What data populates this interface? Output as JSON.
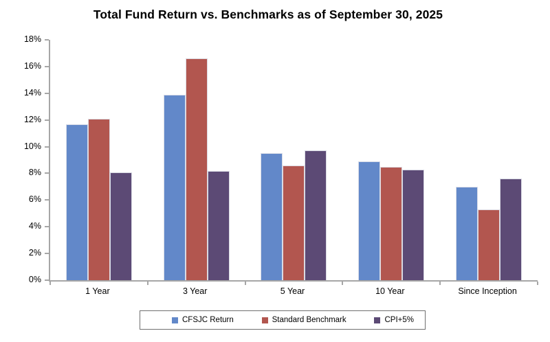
{
  "chart_data": {
    "type": "bar",
    "title": "Total Fund Return vs. Benchmarks as of September 30, 2025",
    "categories": [
      "1 Year",
      "3 Year",
      "5 Year",
      "10 Year",
      "Since Inception"
    ],
    "series": [
      {
        "name": "CFSJC Return",
        "color": "#6288C9",
        "values": [
          11.7,
          13.9,
          9.5,
          8.9,
          7.0
        ]
      },
      {
        "name": "Standard Benchmark",
        "color": "#B2564F",
        "values": [
          12.1,
          16.6,
          8.6,
          8.5,
          5.3
        ]
      },
      {
        "name": "CPI+5%",
        "color": "#5C4A75",
        "values": [
          8.1,
          8.2,
          9.7,
          8.3,
          7.6
        ]
      }
    ],
    "xlabel": "",
    "ylabel": "",
    "ylim": [
      0,
      18
    ],
    "ytick_step": 2,
    "ytick_labels": [
      "0%",
      "2%",
      "4%",
      "6%",
      "8%",
      "10%",
      "12%",
      "14%",
      "16%",
      "18%"
    ],
    "grid": false,
    "legend_position": "bottom",
    "axis_color": "#A6A6A6",
    "text_color": "#000000"
  }
}
